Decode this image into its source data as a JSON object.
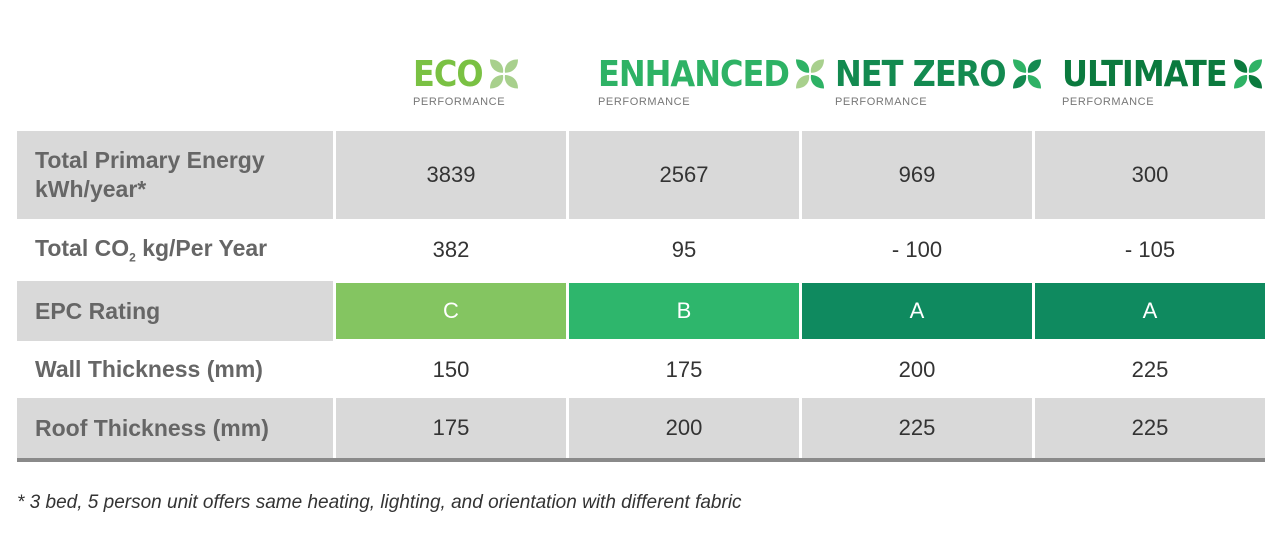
{
  "tiers": [
    {
      "name": "ECO",
      "sub": "PERFORMANCE",
      "color": "#7ac143",
      "epc": "C",
      "epc_color": "#84c561"
    },
    {
      "name": "ENHANCED",
      "sub": "PERFORMANCE",
      "color": "#2eb265",
      "epc": "B",
      "epc_color": "#2eb66c"
    },
    {
      "name": "NET ZERO",
      "sub": "PERFORMANCE",
      "color": "#138a50",
      "epc": "A",
      "epc_color": "#0f8a5f"
    },
    {
      "name": "ULTIMATE",
      "sub": "PERFORMANCE",
      "color": "#0b7a3e",
      "epc": "A",
      "epc_color": "#0f8a5f"
    }
  ],
  "rows": {
    "energy": {
      "label_line1": "Total Primary Energy",
      "label_line2": "kWh/year*",
      "values": [
        "3839",
        "2567",
        "969",
        "300"
      ]
    },
    "co2": {
      "label_pre": "Total CO",
      "label_sub": "2",
      "label_post": " kg/Per Year",
      "values": [
        "382",
        "95",
        "- 100",
        "- 105"
      ]
    },
    "epc": {
      "label": "EPC Rating"
    },
    "wall": {
      "label": "Wall Thickness (mm)",
      "values": [
        "150",
        "175",
        "200",
        "225"
      ]
    },
    "roof": {
      "label": "Roof Thickness (mm)",
      "values": [
        "175",
        "200",
        "225",
        "225"
      ]
    }
  },
  "footnote": "* 3 bed, 5 person unit offers same heating, lighting, and orientation with different fabric"
}
